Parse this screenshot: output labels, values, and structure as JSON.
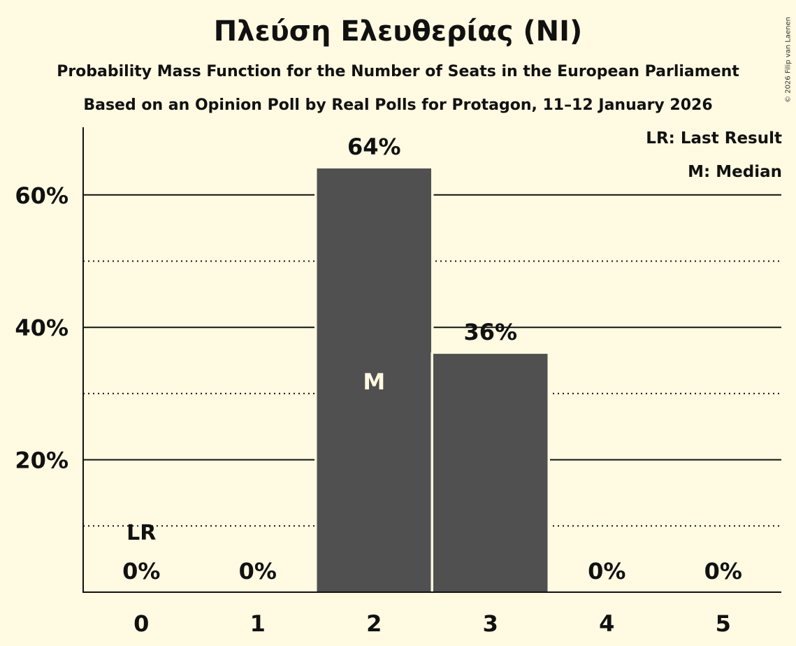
{
  "header": {
    "title": "Πλεύση Ελευθερίας (NI)",
    "subtitle": "Probability Mass Function for the Number of Seats in the European Parliament",
    "subtitle2": "Based on an Opinion Poll by Real Polls for Protagon, 11–12 January 2026",
    "copyright": "© 2026 Filip van Laenen"
  },
  "legend": {
    "lr": "LR: Last Result",
    "m": "M: Median"
  },
  "colors": {
    "background": "#fffae1",
    "bar": "#505050",
    "text": "#111111",
    "median_label": "#fffae1"
  },
  "chart_data": {
    "type": "bar",
    "title": "Πλεύση Ελευθερίας (NI)",
    "subtitle": "Probability Mass Function for the Number of Seats in the European Parliament",
    "xlabel": "",
    "ylabel": "",
    "categories": [
      "0",
      "1",
      "2",
      "3",
      "4",
      "5"
    ],
    "values": [
      0,
      0,
      64,
      36,
      0,
      0
    ],
    "value_labels": [
      "0%",
      "0%",
      "64%",
      "36%",
      "0%",
      "0%"
    ],
    "ylim": [
      0,
      70
    ],
    "yticks": [
      20,
      40,
      60
    ],
    "ytick_labels": [
      "20%",
      "40%",
      "60%"
    ],
    "minor_gridlines": [
      10,
      30,
      50
    ],
    "grid": true,
    "legend_position": "top-right",
    "annotations": [
      {
        "label": "LR",
        "category": "0",
        "meaning": "Last Result"
      },
      {
        "label": "M",
        "category": "2",
        "meaning": "Median"
      }
    ]
  }
}
